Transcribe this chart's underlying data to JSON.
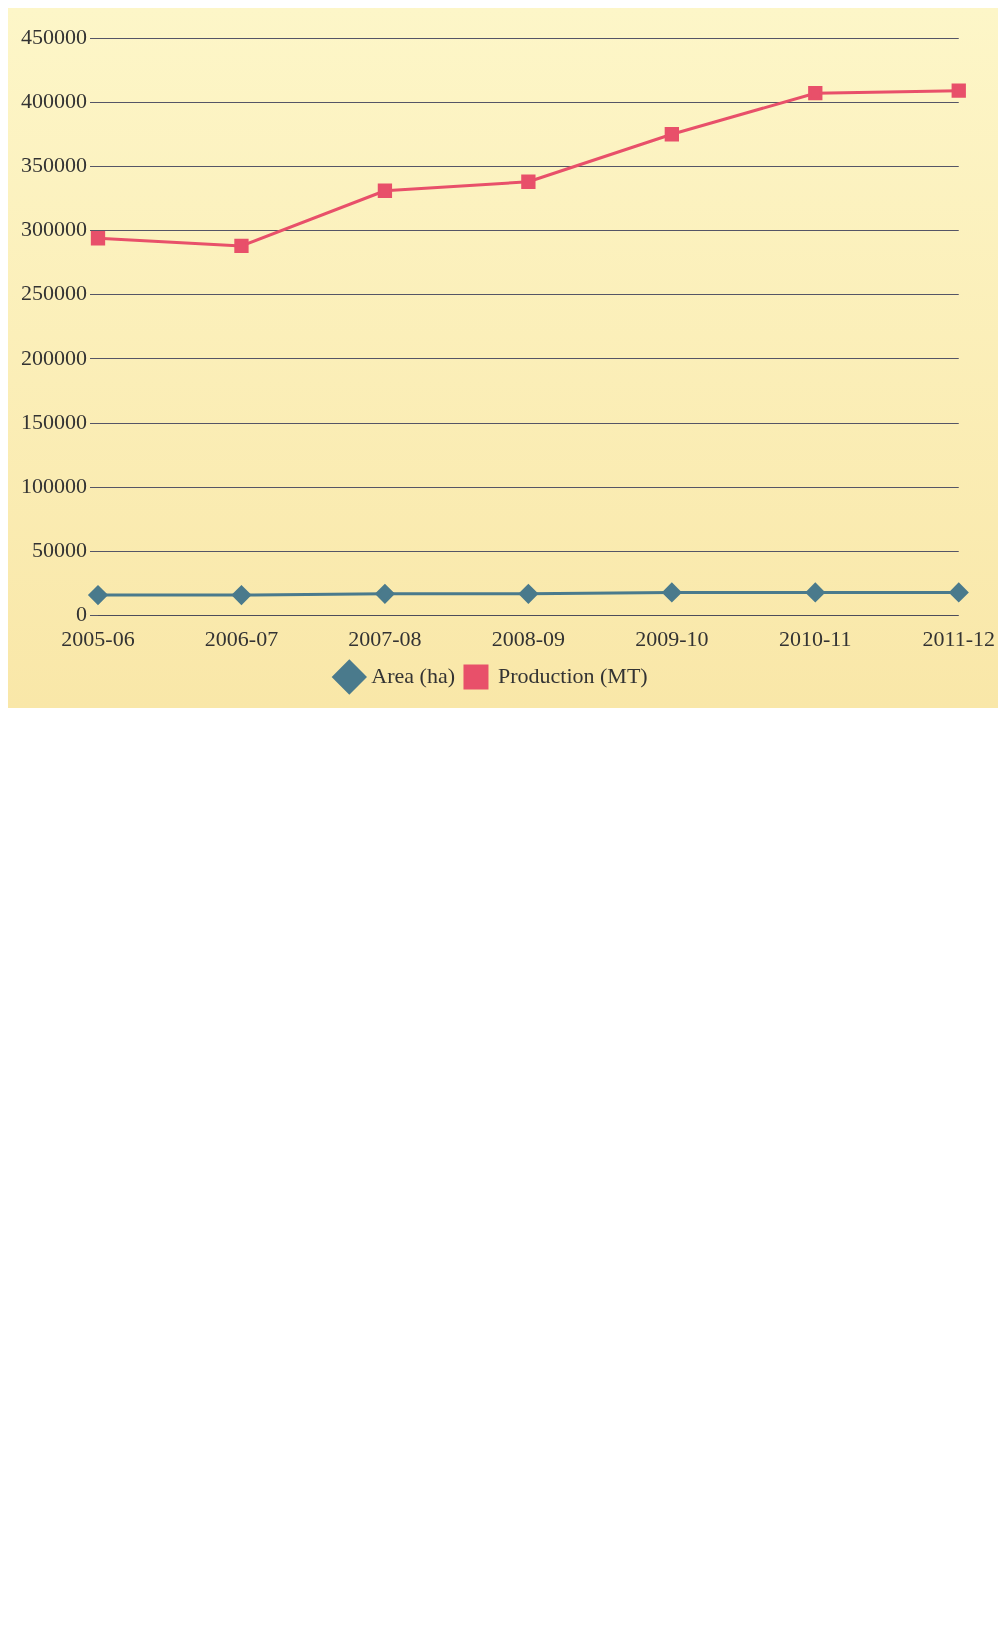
{
  "chart_data": {
    "type": "line",
    "categories": [
      "2005-06",
      "2006-07",
      "2007-08",
      "2008-09",
      "2009-10",
      "2010-11",
      "2011-12"
    ],
    "series": [
      {
        "name": "Area (ha)",
        "color": "#4a7a8c",
        "marker": "diamond",
        "values": [
          16000,
          16000,
          17000,
          17000,
          18000,
          18000,
          18000
        ]
      },
      {
        "name": "Production (MT)",
        "color": "#e8506a",
        "marker": "square",
        "values": [
          294000,
          288000,
          331000,
          338000,
          375000,
          407000,
          409000
        ]
      }
    ],
    "ylim": [
      0,
      450000
    ],
    "yticks": [
      0,
      50000,
      100000,
      150000,
      200000,
      250000,
      300000,
      350000,
      400000,
      450000
    ],
    "grid": "y",
    "legend": "bottom"
  }
}
